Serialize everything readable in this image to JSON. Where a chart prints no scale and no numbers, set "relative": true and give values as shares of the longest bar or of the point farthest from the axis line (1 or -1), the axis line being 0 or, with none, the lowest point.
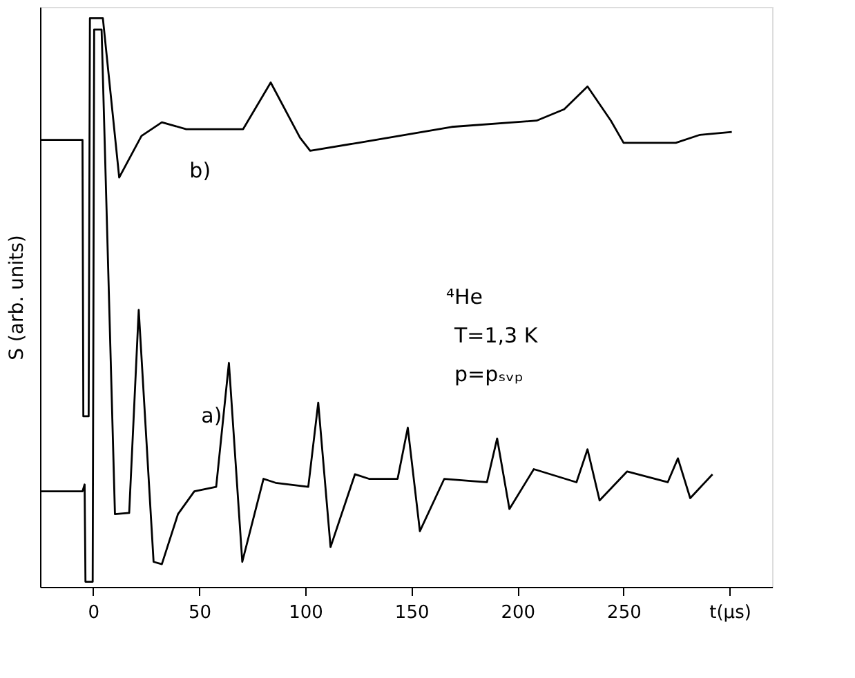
{
  "chart_data": {
    "type": "line",
    "relative": true,
    "ylabel": "S (arb. units)",
    "xlim": [
      -25,
      320
    ],
    "xticks": [
      0,
      50,
      100,
      150,
      200,
      250,
      {
        "value": 300,
        "label": "t(µs)"
      }
    ],
    "annotations": [
      "⁴He",
      "T=1,3 K",
      "p=pₛᵥₚ"
    ],
    "grid": false,
    "marker": "none",
    "line_style": "solid",
    "series": [
      {
        "name": "b)",
        "color": "#000000",
        "x": [
          -25,
          -5,
          -4.6,
          -2.1,
          -1.5,
          4.6,
          12.3,
          22.8,
          32.4,
          43.9,
          70.7,
          83.7,
          97.5,
          102.3,
          125,
          169,
          209,
          222,
          233,
          244,
          250,
          274.6,
          286,
          301
        ],
        "values": [
          0.786,
          0.786,
          0.3,
          0.3,
          1.0,
          1.0,
          0.72,
          0.793,
          0.817,
          0.805,
          0.805,
          0.887,
          0.79,
          0.767,
          0.781,
          0.809,
          0.82,
          0.84,
          0.88,
          0.82,
          0.781,
          0.781,
          0.795,
          0.8
        ]
      },
      {
        "name": "a)",
        "color": "#000000",
        "x": [
          -25,
          -5,
          -4,
          -3.6,
          -0.2,
          0.5,
          4,
          10.3,
          17,
          21.5,
          28.5,
          32.4,
          40,
          47.7,
          58,
          64,
          70.3,
          80.3,
          86,
          101.4,
          106.1,
          111.9,
          123.4,
          130,
          143.5,
          148.3,
          154,
          165.5,
          178.9,
          185.6,
          190.4,
          196.2,
          207.7,
          227.8,
          233,
          238.7,
          251.7,
          270.8,
          275.6,
          281.4,
          291.9
        ],
        "values": [
          0.168,
          0.168,
          0.18,
          0.009,
          0.009,
          0.98,
          0.98,
          0.128,
          0.13,
          0.487,
          0.044,
          0.04,
          0.128,
          0.168,
          0.176,
          0.394,
          0.044,
          0.19,
          0.183,
          0.176,
          0.324,
          0.07,
          0.198,
          0.19,
          0.19,
          0.28,
          0.098,
          0.19,
          0.186,
          0.184,
          0.261,
          0.137,
          0.207,
          0.184,
          0.242,
          0.152,
          0.203,
          0.184,
          0.226,
          0.156,
          0.198
        ]
      }
    ]
  }
}
